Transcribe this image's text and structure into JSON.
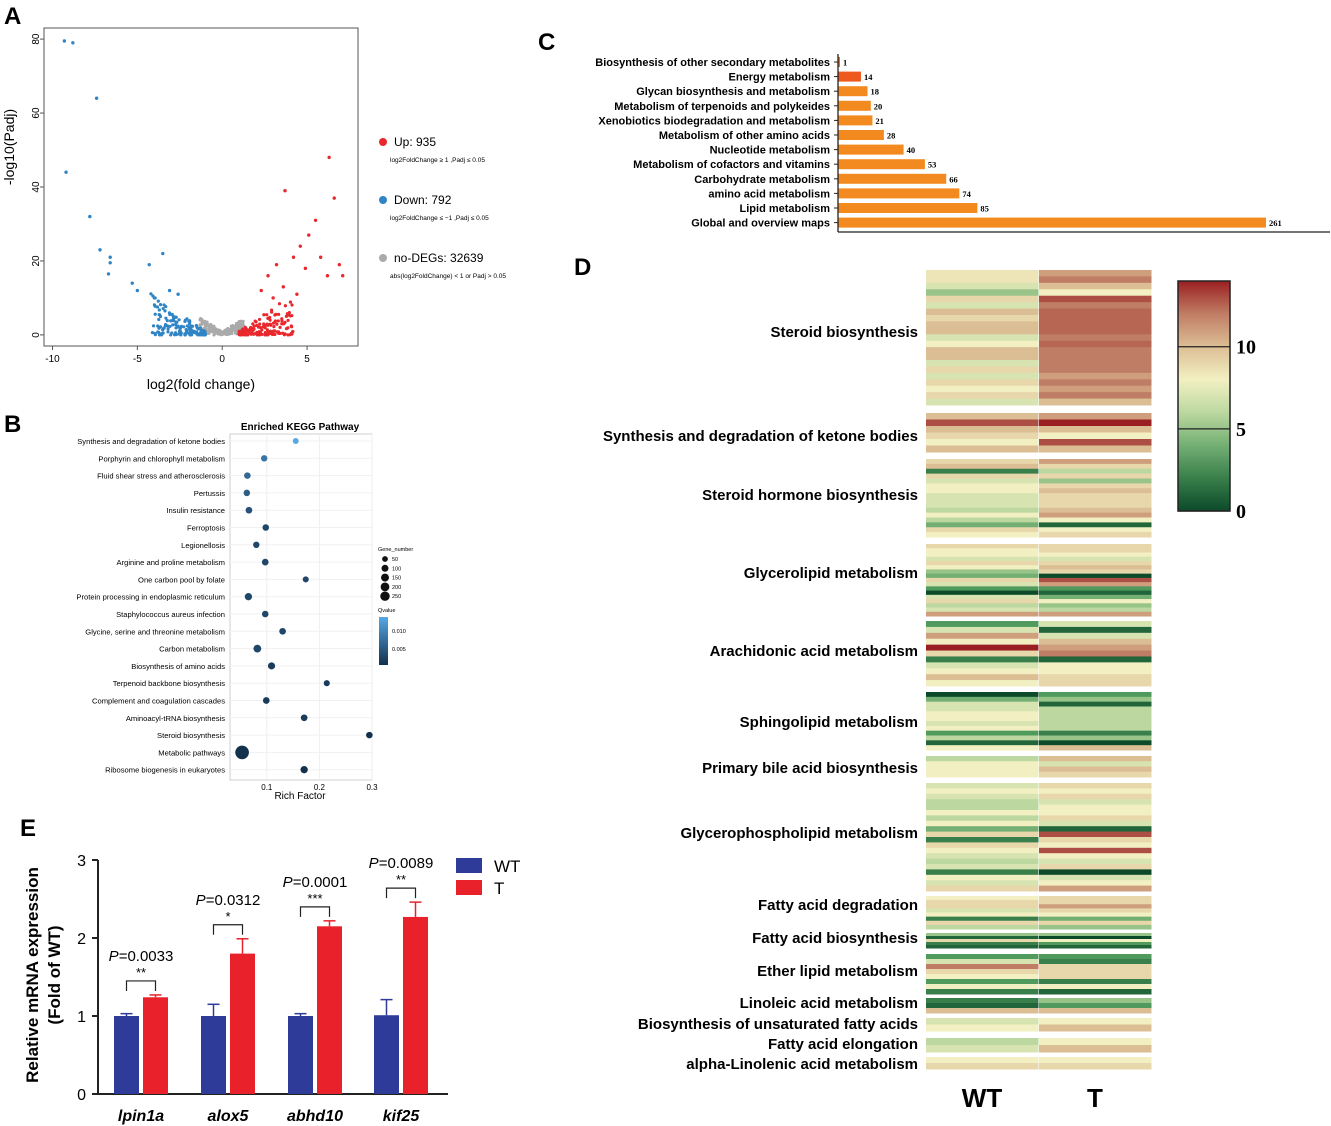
{
  "panel_letters": [
    "A",
    "B",
    "C",
    "D",
    "E"
  ],
  "chart_data": [
    {
      "id": "A",
      "type": "scatter",
      "title": "",
      "xlabel": "log2(fold change)",
      "ylabel": "-log10(Padj)",
      "xlim": [
        -10.5,
        8
      ],
      "ylim": [
        -3,
        83
      ],
      "xticks": [
        -10,
        -5,
        0,
        5
      ],
      "yticks": [
        0,
        20,
        40,
        60,
        80
      ],
      "series": [
        {
          "name": "Up",
          "count_label": "Up: 935",
          "color": "#e8282d",
          "note": "log2FoldChange ≥ 1 ,Padj ≤ 0.05",
          "points": [
            [
              6.3,
              48
            ],
            [
              6.6,
              37
            ],
            [
              3.7,
              39
            ],
            [
              5.5,
              31
            ],
            [
              5.1,
              27
            ],
            [
              4.6,
              24
            ],
            [
              6.9,
              19
            ],
            [
              7.1,
              16
            ],
            [
              5.8,
              21
            ],
            [
              4.2,
              21
            ],
            [
              3.2,
              19
            ],
            [
              4.9,
              18
            ],
            [
              2.7,
              16
            ],
            [
              6.2,
              16
            ],
            [
              3.6,
              13
            ],
            [
              2.3,
              12
            ],
            [
              4.4,
              11
            ],
            [
              3.0,
              10
            ]
          ]
        },
        {
          "name": "Down",
          "count_label": "Down: 792",
          "color": "#2f84c5",
          "note": "log2FoldChange ≤ −1 ,Padj ≤ 0.05",
          "points": [
            [
              -9.3,
              79.5
            ],
            [
              -8.8,
              79
            ],
            [
              -7.4,
              64
            ],
            [
              -9.2,
              44
            ],
            [
              -7.8,
              32
            ],
            [
              -7.2,
              23
            ],
            [
              -6.6,
              21
            ],
            [
              -6.6,
              19.5
            ],
            [
              -6.7,
              16.5
            ],
            [
              -3.5,
              22
            ],
            [
              -4.3,
              19
            ],
            [
              -5.3,
              14
            ],
            [
              -5.0,
              12
            ],
            [
              -3.1,
              12
            ],
            [
              -4.0,
              10
            ],
            [
              -2.6,
              11
            ]
          ]
        },
        {
          "name": "no-DEGs",
          "count_label": "no-DEGs: 32639",
          "color": "#aaaaaa",
          "note": "abs(log2FoldChange) < 1  or Padj > 0.05",
          "points": []
        }
      ]
    },
    {
      "id": "B",
      "type": "scatter",
      "title": "Enriched KEGG Pathway",
      "xlabel": "Rich Factor",
      "xlim": [
        0.03,
        0.3
      ],
      "xticks": [
        0.1,
        0.2,
        0.3
      ],
      "size_legend_title": "Gene_number",
      "size_legend": [
        50,
        100,
        150,
        200,
        250
      ],
      "color_legend_title": "Qvalue",
      "color_legend_ticks": [
        0.01,
        0.005
      ],
      "color_legend_tick_labels": [
        "0.010",
        "0.005"
      ],
      "categories": [
        "Synthesis and degradation of ketone bodies",
        "Porphyrin and chlorophyll metabolism",
        "Fluid shear stress and atherosclerosis",
        "Pertussis",
        "Insulin resistance",
        "Ferroptosis",
        "Legionellosis",
        "Arginine and proline metabolism",
        "One carbon pool by folate",
        "Protein processing in endoplasmic reticulum",
        "Staphylococcus aureus infection",
        "Glycine, serine and threonine metabolism",
        "Carbon metabolism",
        "Biosynthesis of amino acids",
        "Terpenoid backbone biosynthesis",
        "Complement and coagulation cascades",
        "Aminoacyl-tRNA biosynthesis",
        "Steroid biosynthesis",
        "Metabolic pathways",
        "Ribosome biogenesis in eukaryotes"
      ],
      "rich_factor": [
        0.155,
        0.095,
        0.063,
        0.062,
        0.066,
        0.098,
        0.08,
        0.097,
        0.174,
        0.065,
        0.097,
        0.13,
        0.082,
        0.109,
        0.214,
        0.099,
        0.171,
        0.295,
        0.053,
        0.171
      ],
      "gene_number": [
        10,
        16,
        18,
        18,
        20,
        18,
        16,
        20,
        12,
        30,
        18,
        20,
        40,
        28,
        12,
        20,
        20,
        18,
        260,
        30
      ],
      "qvalue": [
        0.0125,
        0.008,
        0.007,
        0.006,
        0.005,
        0.004,
        0.004,
        0.004,
        0.004,
        0.004,
        0.004,
        0.004,
        0.004,
        0.003,
        0.003,
        0.003,
        0.003,
        0.002,
        0.002,
        0.002
      ]
    },
    {
      "id": "C",
      "type": "bar",
      "orientation": "horizontal",
      "categories": [
        "Biosynthesis of other secondary metabolites",
        "Energy metabolism",
        "Glycan biosynthesis and metabolism",
        "Metabolism of terpenoids and polykeides",
        "Xenobiotics biodegradation and metabolism",
        "Metabolism of other amino acids",
        "Nucleotide metabolism",
        "Metabolism of cofactors and vitamins",
        "Carbohydrate metabolism",
        "amino acid metabolism",
        "Lipid metabolism",
        "Global and overview maps"
      ],
      "values": [
        1,
        14,
        18,
        20,
        21,
        28,
        40,
        53,
        66,
        74,
        85,
        261
      ],
      "colors": [
        "#ee6b1e",
        "#ee5a1e",
        "#f38a1f",
        "#f38a1f",
        "#f38a1f",
        "#f38a1f",
        "#f38a1f",
        "#f38a1f",
        "#f38a1f",
        "#f38a1f",
        "#f38a1f",
        "#f38a1f"
      ]
    },
    {
      "id": "D",
      "type": "heatmap",
      "columns": [
        "WT",
        "T"
      ],
      "color_scale_ticks": [
        10,
        5,
        0
      ],
      "color_range": [
        0,
        14
      ],
      "groups": [
        {
          "label": "Steroid biosynthesis",
          "rows": [
            [
              8.5,
              11
            ],
            [
              8.5,
              12
            ],
            [
              7,
              10
            ],
            [
              5,
              8
            ],
            [
              9,
              13
            ],
            [
              7,
              12
            ],
            [
              10,
              12.5
            ],
            [
              9,
              12.5
            ],
            [
              10,
              12.5
            ],
            [
              10,
              12.5
            ],
            [
              7,
              12
            ],
            [
              8,
              12.5
            ],
            [
              10,
              12
            ],
            [
              10,
              12
            ],
            [
              7,
              12
            ],
            [
              9,
              12
            ],
            [
              7,
              11
            ],
            [
              9,
              12
            ],
            [
              8,
              11
            ],
            [
              9,
              12
            ],
            [
              7,
              10
            ]
          ]
        },
        {
          "label": "Synthesis and degradation of ketone bodies",
          "rows": [
            [
              10,
              11
            ],
            [
              13,
              14
            ],
            [
              10,
              10
            ],
            [
              9,
              8
            ],
            [
              8,
              13
            ],
            [
              10,
              10
            ]
          ]
        },
        {
          "label": "Steroid hormone biosynthesis",
          "rows": [
            [
              9,
              11
            ],
            [
              10,
              9
            ],
            [
              2,
              6
            ],
            [
              9,
              9
            ],
            [
              7,
              5
            ],
            [
              8,
              9
            ],
            [
              8,
              10
            ],
            [
              7,
              9
            ],
            [
              7,
              9
            ],
            [
              7,
              9
            ],
            [
              6,
              10
            ],
            [
              8,
              11
            ],
            [
              6,
              8
            ],
            [
              4,
              1
            ],
            [
              9,
              8
            ],
            [
              8,
              9
            ]
          ]
        },
        {
          "label": "Glycerolipid metabolism",
          "rows": [
            [
              9,
              9
            ],
            [
              8,
              9
            ],
            [
              8,
              8
            ],
            [
              7,
              7
            ],
            [
              9,
              9
            ],
            [
              8,
              10
            ],
            [
              5,
              9
            ],
            [
              4,
              0
            ],
            [
              9,
              13
            ],
            [
              7,
              11
            ],
            [
              3,
              3
            ],
            [
              0,
              1
            ],
            [
              7,
              4
            ],
            [
              9,
              8
            ],
            [
              6,
              5
            ],
            [
              7,
              6
            ],
            [
              11,
              11
            ]
          ]
        },
        {
          "label": "Arachidonic acid metabolism",
          "rows": [
            [
              3,
              7
            ],
            [
              7,
              1
            ],
            [
              11,
              7
            ],
            [
              8,
              10
            ],
            [
              14,
              11
            ],
            [
              9,
              12
            ],
            [
              2,
              1
            ],
            [
              7,
              8
            ],
            [
              8,
              8
            ],
            [
              10,
              9
            ],
            [
              8,
              9
            ]
          ]
        },
        {
          "label": "Sphingolipid metabolism",
          "rows": [
            [
              0,
              3
            ],
            [
              4,
              5
            ],
            [
              7,
              1
            ],
            [
              7,
              6
            ],
            [
              8,
              6
            ],
            [
              8,
              6
            ],
            [
              7,
              6
            ],
            [
              8,
              6
            ],
            [
              3,
              2
            ],
            [
              6,
              5
            ],
            [
              1,
              0
            ],
            [
              8,
              10
            ]
          ]
        },
        {
          "label": "Primary bile acid biosynthesis",
          "rows": [
            [
              6,
              10
            ],
            [
              8,
              7
            ],
            [
              8,
              10
            ],
            [
              8,
              9
            ]
          ]
        },
        {
          "label": "Glycerophospholipid metabolism",
          "rows": [
            [
              7,
              9
            ],
            [
              8,
              8
            ],
            [
              7,
              9
            ],
            [
              6,
              7
            ],
            [
              6,
              8
            ],
            [
              8,
              8
            ],
            [
              6,
              9
            ],
            [
              8,
              7
            ],
            [
              4,
              1
            ],
            [
              9,
              13
            ],
            [
              2,
              9
            ],
            [
              9,
              8
            ],
            [
              8,
              13
            ],
            [
              7,
              8
            ],
            [
              6,
              7
            ],
            [
              7,
              9
            ],
            [
              2,
              0
            ],
            [
              8,
              7
            ],
            [
              7,
              8
            ],
            [
              9,
              11
            ]
          ]
        },
        {
          "label": "Fatty acid degradation",
          "rows": [
            [
              8,
              9
            ],
            [
              9,
              9
            ],
            [
              9,
              11
            ],
            [
              7,
              9
            ],
            [
              8,
              8
            ],
            [
              2,
              4
            ],
            [
              9,
              9
            ],
            [
              6,
              5
            ]
          ]
        },
        {
          "label": "Fatty acid biosynthesis",
          "rows": [
            [
              5,
              5
            ],
            [
              1,
              0
            ],
            [
              9,
              8
            ],
            [
              2,
              3
            ],
            [
              1,
              1
            ]
          ]
        },
        {
          "label": "Ether lipid metabolism",
          "rows": [
            [
              3,
              3
            ],
            [
              7,
              2
            ],
            [
              12,
              9
            ],
            [
              9,
              9
            ],
            [
              8,
              9
            ],
            [
              3,
              2
            ],
            [
              8,
              8
            ],
            [
              2,
              1
            ]
          ]
        },
        {
          "label": "Linoleic acid metabolism",
          "rows": [
            [
              2,
              5
            ],
            [
              1,
              3
            ],
            [
              10,
              10
            ]
          ]
        },
        {
          "label": "Biosynthesis of unsaturated fatty acids",
          "rows": [
            [
              7,
              8
            ],
            [
              8,
              10
            ]
          ]
        },
        {
          "label": "Fatty acid elongation",
          "rows": [
            [
              6,
              8
            ],
            [
              7,
              10
            ]
          ]
        },
        {
          "label": "alpha-Linolenic acid metabolism",
          "rows": [
            [
              8,
              8
            ],
            [
              9,
              9
            ]
          ]
        }
      ]
    },
    {
      "id": "E",
      "type": "bar",
      "ylabel_line1": "Relative mRNA expression",
      "ylabel_line2": "(Fold of WT)",
      "ylim": [
        0,
        3
      ],
      "yticks": [
        0,
        1,
        2,
        3
      ],
      "categories": [
        "lpin1a",
        "alox5",
        "abhd10",
        "kif25"
      ],
      "series": [
        {
          "name": "WT",
          "color": "#2e3b98",
          "values": [
            1.0,
            1.0,
            1.0,
            1.01
          ],
          "errors": [
            0.03,
            0.15,
            0.03,
            0.2
          ]
        },
        {
          "name": "T",
          "color": "#e8212a",
          "values": [
            1.24,
            1.8,
            2.15,
            2.27
          ],
          "errors": [
            0.03,
            0.19,
            0.07,
            0.19
          ]
        }
      ],
      "p_values": [
        "0.0033",
        "0.0312",
        "0.0001",
        "0.0089"
      ],
      "p_prefix": "P",
      "stars": [
        "**",
        "*",
        "***",
        "**"
      ]
    }
  ]
}
